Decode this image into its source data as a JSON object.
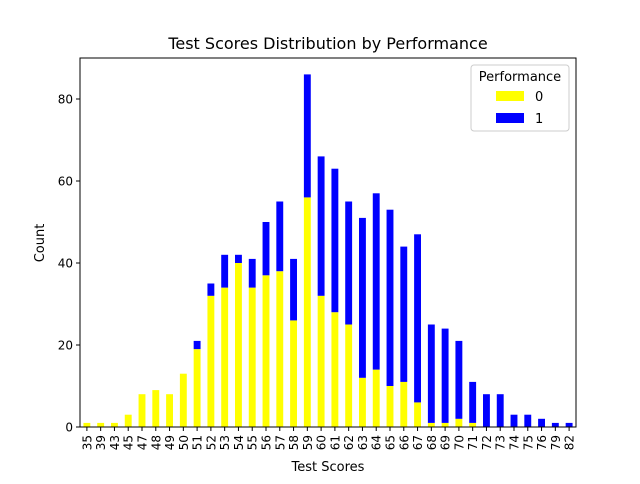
{
  "chart_data": {
    "type": "bar",
    "stacked": true,
    "title": "Test Scores Distribution by Performance",
    "xlabel": "Test Scores",
    "ylabel": "Count",
    "ylim": [
      0,
      90
    ],
    "yticks": [
      0,
      20,
      40,
      60,
      80
    ],
    "grid": false,
    "categories": [
      "35",
      "39",
      "43",
      "45",
      "47",
      "48",
      "49",
      "50",
      "51",
      "52",
      "53",
      "54",
      "55",
      "56",
      "57",
      "58",
      "59",
      "60",
      "61",
      "62",
      "63",
      "64",
      "65",
      "66",
      "67",
      "68",
      "69",
      "70",
      "71",
      "72",
      "73",
      "74",
      "75",
      "76",
      "79",
      "82"
    ],
    "series": [
      {
        "name": "0",
        "color": "#ffff00",
        "values": [
          1,
          1,
          1,
          3,
          8,
          9,
          8,
          13,
          19,
          32,
          34,
          40,
          34,
          37,
          38,
          26,
          56,
          32,
          28,
          25,
          12,
          14,
          10,
          11,
          6,
          1,
          1,
          2,
          1,
          0,
          0,
          0,
          0,
          0,
          0,
          0
        ]
      },
      {
        "name": "1",
        "color": "#0000ff",
        "values": [
          0,
          0,
          0,
          0,
          0,
          0,
          0,
          0,
          2,
          3,
          8,
          2,
          7,
          13,
          17,
          15,
          30,
          34,
          35,
          30,
          39,
          43,
          43,
          33,
          41,
          24,
          23,
          19,
          10,
          8,
          8,
          3,
          3,
          2,
          1,
          1
        ]
      }
    ],
    "legend": {
      "title": "Performance",
      "placement": "top-right",
      "entries": [
        "0",
        "1"
      ]
    }
  }
}
